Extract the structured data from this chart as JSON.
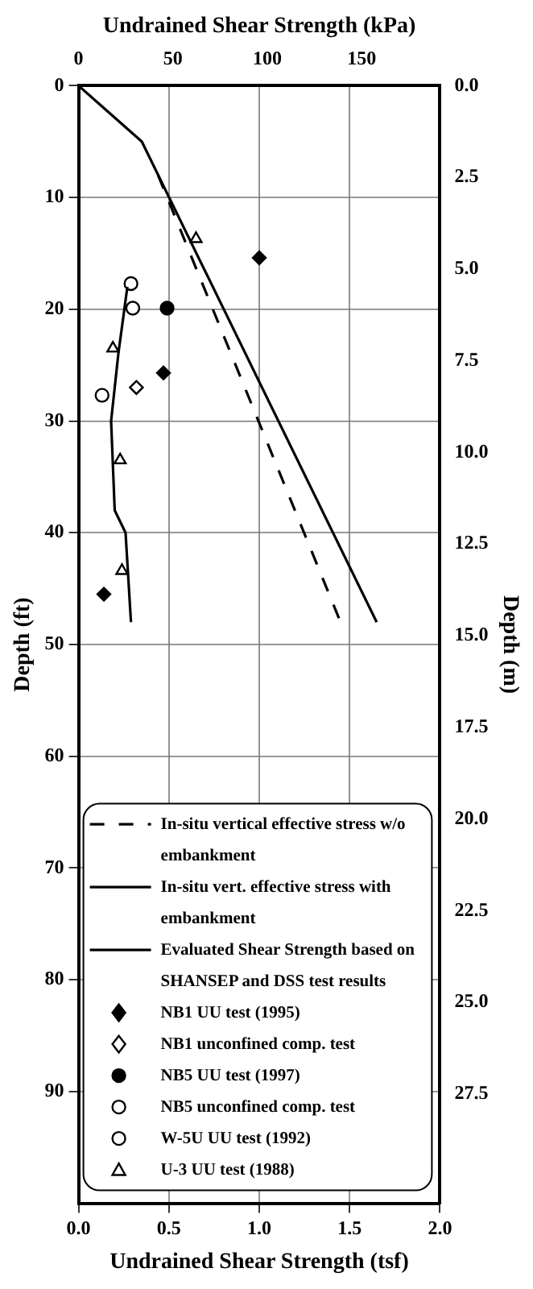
{
  "chart_data": {
    "type": "line",
    "xlabel": "Undrained Shear Strength (tsf)",
    "x2label": "Undrained Shear Strength (kPa)",
    "ylabel": "Depth (ft)",
    "y2label": "Depth (m)",
    "xlim": [
      0,
      2
    ],
    "xticks": [
      {
        "value": 0,
        "label": "0.0"
      },
      {
        "value": 0.5,
        "label": "0.5"
      },
      {
        "value": 1,
        "label": "1.0"
      },
      {
        "value": 1.5,
        "label": "1.5"
      },
      {
        "value": 2,
        "label": "2.0"
      }
    ],
    "x2lim": [
      0,
      191.5
    ],
    "x2ticks": [
      0,
      50,
      100,
      150
    ],
    "ylim": [
      100,
      0
    ],
    "yticks": [
      0,
      10,
      20,
      30,
      40,
      50,
      60,
      70,
      80,
      90
    ],
    "y2lim": [
      30.48,
      0
    ],
    "y2ticks": [
      {
        "value": 0,
        "label": "0.0"
      },
      {
        "value": 2.5,
        "label": "2.5"
      },
      {
        "value": 5,
        "label": "5.0"
      },
      {
        "value": 7.5,
        "label": "7.5"
      },
      {
        "value": 10,
        "label": "10.0"
      },
      {
        "value": 12.5,
        "label": "12.5"
      },
      {
        "value": 15,
        "label": "15.0"
      },
      {
        "value": 17.5,
        "label": "17.5"
      },
      {
        "value": 20,
        "label": "20.0"
      },
      {
        "value": 22.5,
        "label": "22.5"
      },
      {
        "value": 25,
        "label": "25.0"
      },
      {
        "value": 27.5,
        "label": "27.5"
      }
    ],
    "grid": true,
    "legend": "bottom",
    "series": [
      {
        "name": "In-situ vertical effective stress w/o embankment",
        "line_style": "dashed",
        "marker": "none",
        "color": "#000000",
        "x": [
          0.44,
          1.45
        ],
        "values": [
          8,
          48
        ]
      },
      {
        "name": "In-situ vert. effective stress with embankment",
        "line_style": "solid",
        "marker": "none",
        "color": "#000000",
        "x": [
          0,
          0.35,
          1.65
        ],
        "values": [
          0,
          5,
          48
        ]
      },
      {
        "name": "Evaluated Shear Strength based on SHANSEP and DSS test results",
        "line_style": "solid",
        "marker": "none",
        "color": "#000000",
        "x": [
          0.27,
          0.22,
          0.18,
          0.2,
          0.26,
          0.29
        ],
        "values": [
          18,
          24,
          30,
          38,
          40,
          48
        ]
      },
      {
        "name": "NB1 UU test (1995)",
        "type": "scatter",
        "marker": "diamond",
        "color": "#000000",
        "x": [
          1.0,
          0.47,
          0.14
        ],
        "values": [
          15.4,
          25.7,
          45.5
        ]
      },
      {
        "name": "NB1 unconfined comp. test",
        "type": "scatter",
        "marker": "diamond",
        "color": "#ffffff",
        "x": [
          0.32
        ],
        "values": [
          27
        ]
      },
      {
        "name": "NB5 UU test (1997)",
        "type": "scatter",
        "marker": "circle",
        "color": "#000000",
        "x": [
          0.49
        ],
        "values": [
          19.9
        ]
      },
      {
        "name": "NB5 unconfined comp. test",
        "type": "scatter",
        "marker": "circle",
        "color": "#ffffff",
        "x": [
          0.3
        ],
        "values": [
          19.9
        ]
      },
      {
        "name": "W-5U UU test (1992)",
        "type": "scatter",
        "marker": "circle",
        "color": "#ffffff",
        "x": [
          0.29,
          0.13
        ],
        "values": [
          17.7,
          27.7
        ]
      },
      {
        "name": "U-3 UU test (1988)",
        "type": "scatter",
        "marker": "triangle",
        "color": "#ffffff",
        "x": [
          0.65,
          0.19,
          0.23,
          0.24
        ],
        "values": [
          13.7,
          23.5,
          33.5,
          43.4
        ]
      }
    ]
  }
}
